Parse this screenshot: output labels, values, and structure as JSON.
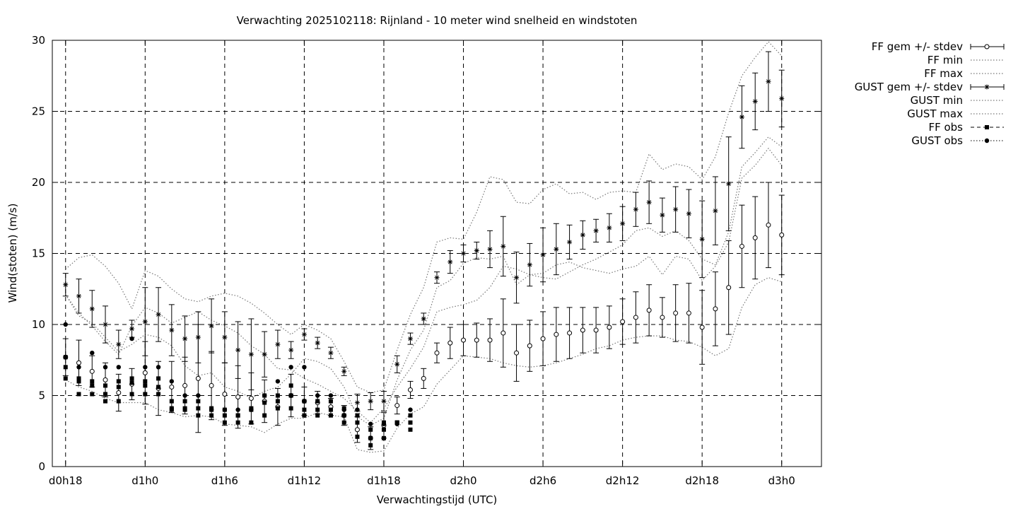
{
  "chart_data": {
    "type": "errorbar",
    "title": "Verwachting 2025102118: Rijnland - 10 meter wind snelheid en windstoten",
    "xlabel": "Verwachtingstijd (UTC)",
    "ylabel": "Wind(stoten) (m/s)",
    "xlim_hours": [
      -1,
      57
    ],
    "ylim": [
      0,
      30
    ],
    "yticks": [
      0,
      5,
      10,
      15,
      20,
      25,
      30
    ],
    "xticks": [
      {
        "hour": 0,
        "label": "d0h18"
      },
      {
        "hour": 6,
        "label": "d1h0"
      },
      {
        "hour": 12,
        "label": "d1h6"
      },
      {
        "hour": 18,
        "label": "d1h12"
      },
      {
        "hour": 24,
        "label": "d1h18"
      },
      {
        "hour": 30,
        "label": "d2h0"
      },
      {
        "hour": 36,
        "label": "d2h6"
      },
      {
        "hour": 42,
        "label": "d2h12"
      },
      {
        "hour": 48,
        "label": "d2h18"
      },
      {
        "hour": 54,
        "label": "d3h0"
      }
    ],
    "grid": true,
    "legend_position": "outside-top-right",
    "legend": [
      "FF gem +/- stdev",
      "FF min",
      "FF max",
      "GUST gem +/- stdev",
      "GUST min",
      "GUST max",
      "FF obs",
      "GUST obs"
    ],
    "hours": [
      0,
      1,
      2,
      3,
      4,
      5,
      6,
      7,
      8,
      9,
      10,
      11,
      12,
      13,
      14,
      15,
      16,
      17,
      18,
      19,
      20,
      21,
      22,
      23,
      24,
      25,
      26,
      27,
      28,
      29,
      30,
      31,
      32,
      33,
      34,
      35,
      36,
      37,
      38,
      39,
      40,
      41,
      42,
      43,
      44,
      45,
      46,
      47,
      48,
      49,
      50,
      51,
      52,
      53,
      54
    ],
    "ff_mean": [
      7.7,
      7.3,
      6.7,
      6.1,
      5.2,
      5.8,
      6.6,
      5.5,
      5.6,
      5.7,
      6.2,
      5.7,
      5.1,
      4.9,
      4.8,
      4.6,
      4.2,
      5.0,
      4.6,
      4.5,
      4.2,
      3.6,
      2.6,
      2.0,
      2.9,
      4.3,
      5.4,
      6.2,
      8.0,
      8.7,
      8.9,
      8.9,
      8.9,
      9.4,
      8.0,
      8.5,
      9.0,
      9.3,
      9.4,
      9.6,
      9.6,
      9.8,
      10.2,
      10.5,
      11.0,
      10.5,
      10.8,
      10.8,
      9.8,
      11.1,
      12.6,
      15.5,
      16.1,
      17.0,
      16.3
    ],
    "ff_std": [
      1.3,
      1.6,
      1.1,
      1.2,
      1.3,
      1.1,
      2.2,
      1.9,
      1.8,
      2.0,
      3.8,
      2.4,
      2.2,
      2.2,
      1.8,
      1.5,
      1.3,
      1.5,
      1.0,
      0.8,
      0.6,
      0.7,
      0.9,
      0.8,
      0.9,
      0.6,
      0.6,
      0.7,
      0.7,
      1.1,
      1.1,
      1.2,
      1.5,
      2.4,
      2.0,
      1.8,
      1.9,
      1.9,
      1.8,
      1.6,
      1.6,
      1.5,
      1.6,
      1.8,
      1.8,
      1.4,
      2.0,
      2.1,
      2.6,
      2.6,
      3.3,
      2.9,
      2.9,
      3.0,
      2.8
    ],
    "ff_min": [
      6.1,
      5.6,
      5.3,
      4.8,
      4.5,
      4.5,
      4.5,
      4.0,
      3.8,
      3.5,
      3.6,
      3.5,
      3.0,
      2.9,
      2.8,
      2.4,
      3.0,
      3.4,
      3.4,
      3.8,
      3.6,
      3.5,
      1.2,
      1.0,
      1.1,
      2.7,
      3.7,
      4.2,
      5.8,
      6.8,
      7.8,
      7.7,
      7.6,
      7.3,
      7.1,
      7.0,
      7.1,
      7.3,
      7.6,
      7.9,
      8.3,
      8.5,
      8.9,
      9.1,
      9.2,
      9.2,
      8.9,
      8.8,
      8.4,
      7.8,
      8.3,
      11.2,
      12.8,
      13.3,
      13.0
    ],
    "ff_max": [
      12.1,
      10.8,
      9.9,
      8.8,
      7.9,
      9.9,
      11.2,
      10.8,
      10.1,
      10.5,
      10.9,
      10.3,
      9.9,
      9.4,
      8.5,
      7.9,
      6.9,
      6.8,
      6.2,
      5.8,
      5.3,
      4.8,
      3.9,
      3.1,
      4.1,
      5.6,
      6.9,
      8.4,
      10.9,
      11.2,
      11.4,
      11.7,
      12.6,
      14.1,
      13.9,
      13.5,
      13.6,
      14.2,
      14.4,
      14.0,
      13.8,
      13.6,
      13.9,
      14.1,
      14.8,
      13.5,
      14.8,
      14.6,
      13.1,
      14.1,
      15.8,
      20.3,
      21.2,
      22.4,
      21.2
    ],
    "gust_mean": [
      12.8,
      12.0,
      11.1,
      10.0,
      8.6,
      9.7,
      10.2,
      10.7,
      9.6,
      9.0,
      9.1,
      9.9,
      9.1,
      8.2,
      7.9,
      7.9,
      8.6,
      8.2,
      9.3,
      8.7,
      8.0,
      6.7,
      4.5,
      4.6,
      4.6,
      7.2,
      9.0,
      10.4,
      13.3,
      14.4,
      15.0,
      15.2,
      15.3,
      15.5,
      13.3,
      14.2,
      14.9,
      15.3,
      15.8,
      16.3,
      16.6,
      16.8,
      17.1,
      18.1,
      18.6,
      17.7,
      18.1,
      17.8,
      16.0,
      18.0,
      19.9,
      24.6,
      25.7,
      27.1,
      25.9
    ],
    "gust_std": [
      0.8,
      1.2,
      1.3,
      1.3,
      1.0,
      0.6,
      2.4,
      1.9,
      1.8,
      1.6,
      1.8,
      1.9,
      1.8,
      2.0,
      2.5,
      1.6,
      1.0,
      0.6,
      0.4,
      0.4,
      0.4,
      0.3,
      0.6,
      0.6,
      0.7,
      0.6,
      0.4,
      0.4,
      0.4,
      0.8,
      0.6,
      0.6,
      1.3,
      2.1,
      1.8,
      1.5,
      1.9,
      1.8,
      1.2,
      1.0,
      0.8,
      1.0,
      1.2,
      1.2,
      1.5,
      1.2,
      1.6,
      1.7,
      2.7,
      2.4,
      3.3,
      2.2,
      2.0,
      2.1,
      2.0
    ],
    "gust_min": [
      12.1,
      10.6,
      10.1,
      9.1,
      8.1,
      8.6,
      9.3,
      9.1,
      8.5,
      7.1,
      6.4,
      6.6,
      5.6,
      5.3,
      4.8,
      5.3,
      5.6,
      6.5,
      7.6,
      7.4,
      6.9,
      5.6,
      3.5,
      2.9,
      3.4,
      6.1,
      8.2,
      9.6,
      12.6,
      13.1,
      14.3,
      14.7,
      14.6,
      14.8,
      12.8,
      13.5,
      13.3,
      13.2,
      13.7,
      14.2,
      14.6,
      15.1,
      15.6,
      16.6,
      16.8,
      16.2,
      16.6,
      15.9,
      14.6,
      14.2,
      16.5,
      21.1,
      22.1,
      23.2,
      22.5
    ],
    "gust_max": [
      13.9,
      14.7,
      14.9,
      14.1,
      12.9,
      11.1,
      13.8,
      13.4,
      12.5,
      11.8,
      11.6,
      12.0,
      12.2,
      12.0,
      11.5,
      10.8,
      10.0,
      9.3,
      10.0,
      9.6,
      9.0,
      7.4,
      5.6,
      5.2,
      5.4,
      8.2,
      10.7,
      12.6,
      15.8,
      16.1,
      16.0,
      17.9,
      20.4,
      20.2,
      18.6,
      18.5,
      19.5,
      19.9,
      19.2,
      19.3,
      18.8,
      19.3,
      19.4,
      19.3,
      22.0,
      20.9,
      21.3,
      21.1,
      20.2,
      21.8,
      24.9,
      27.5,
      28.8,
      29.9,
      28.9
    ],
    "obs_hours": [
      0,
      1,
      2,
      3,
      4,
      5,
      6,
      7,
      8,
      9,
      10,
      11,
      12,
      13,
      14,
      15,
      16,
      17,
      18,
      19,
      20,
      21,
      22,
      23,
      24,
      25,
      26
    ],
    "ff_obs": [
      [
        6.2,
        7.0,
        7.7
      ],
      [
        5.1,
        6.0,
        6.2
      ],
      [
        5.1,
        5.7,
        6.0
      ],
      [
        4.6,
        5.1,
        5.7
      ],
      [
        4.6,
        5.6,
        6.0
      ],
      [
        5.1,
        5.9,
        6.2
      ],
      [
        5.1,
        5.7,
        6.0
      ],
      [
        5.1,
        5.6,
        6.2
      ],
      [
        4.0,
        4.1,
        4.6
      ],
      [
        4.0,
        4.1,
        4.6
      ],
      [
        3.6,
        4.1,
        4.6
      ],
      [
        3.6,
        4.0,
        4.1
      ],
      [
        3.1,
        3.6,
        4.0
      ],
      [
        3.1,
        3.6,
        3.6
      ],
      [
        3.1,
        4.0,
        4.1
      ],
      [
        3.6,
        4.5,
        5.0
      ],
      [
        4.1,
        4.6,
        5.0
      ],
      [
        4.1,
        5.0,
        5.7
      ],
      [
        3.6,
        4.0,
        4.6
      ],
      [
        3.6,
        4.0,
        4.6
      ],
      [
        3.6,
        4.0,
        4.6
      ],
      [
        3.1,
        3.6,
        4.1
      ],
      [
        2.1,
        3.1,
        3.6
      ],
      [
        1.5,
        2.0,
        2.6
      ],
      [
        2.0,
        2.6,
        3.1
      ],
      [
        3.1,
        3.1,
        3.1
      ],
      [
        2.6,
        3.1,
        3.6
      ]
    ],
    "gust_obs": [
      [
        10.0
      ],
      [
        7.0
      ],
      [
        8.0
      ],
      [
        7.0
      ],
      [
        7.0
      ],
      [
        9.0
      ],
      [
        7.0
      ],
      [
        7.0
      ],
      [
        6.0
      ],
      [
        5.0
      ],
      [
        5.0
      ],
      [
        4.0
      ],
      [
        4.0
      ],
      [
        4.0
      ],
      [
        4.0
      ],
      [
        5.0
      ],
      [
        6.0
      ],
      [
        7.0
      ],
      [
        7.0
      ],
      [
        5.0
      ],
      [
        5.0
      ],
      [
        4.0
      ],
      [
        4.0
      ],
      [
        3.0
      ],
      [
        3.0
      ],
      [
        3.0
      ],
      [
        4.0
      ]
    ]
  }
}
